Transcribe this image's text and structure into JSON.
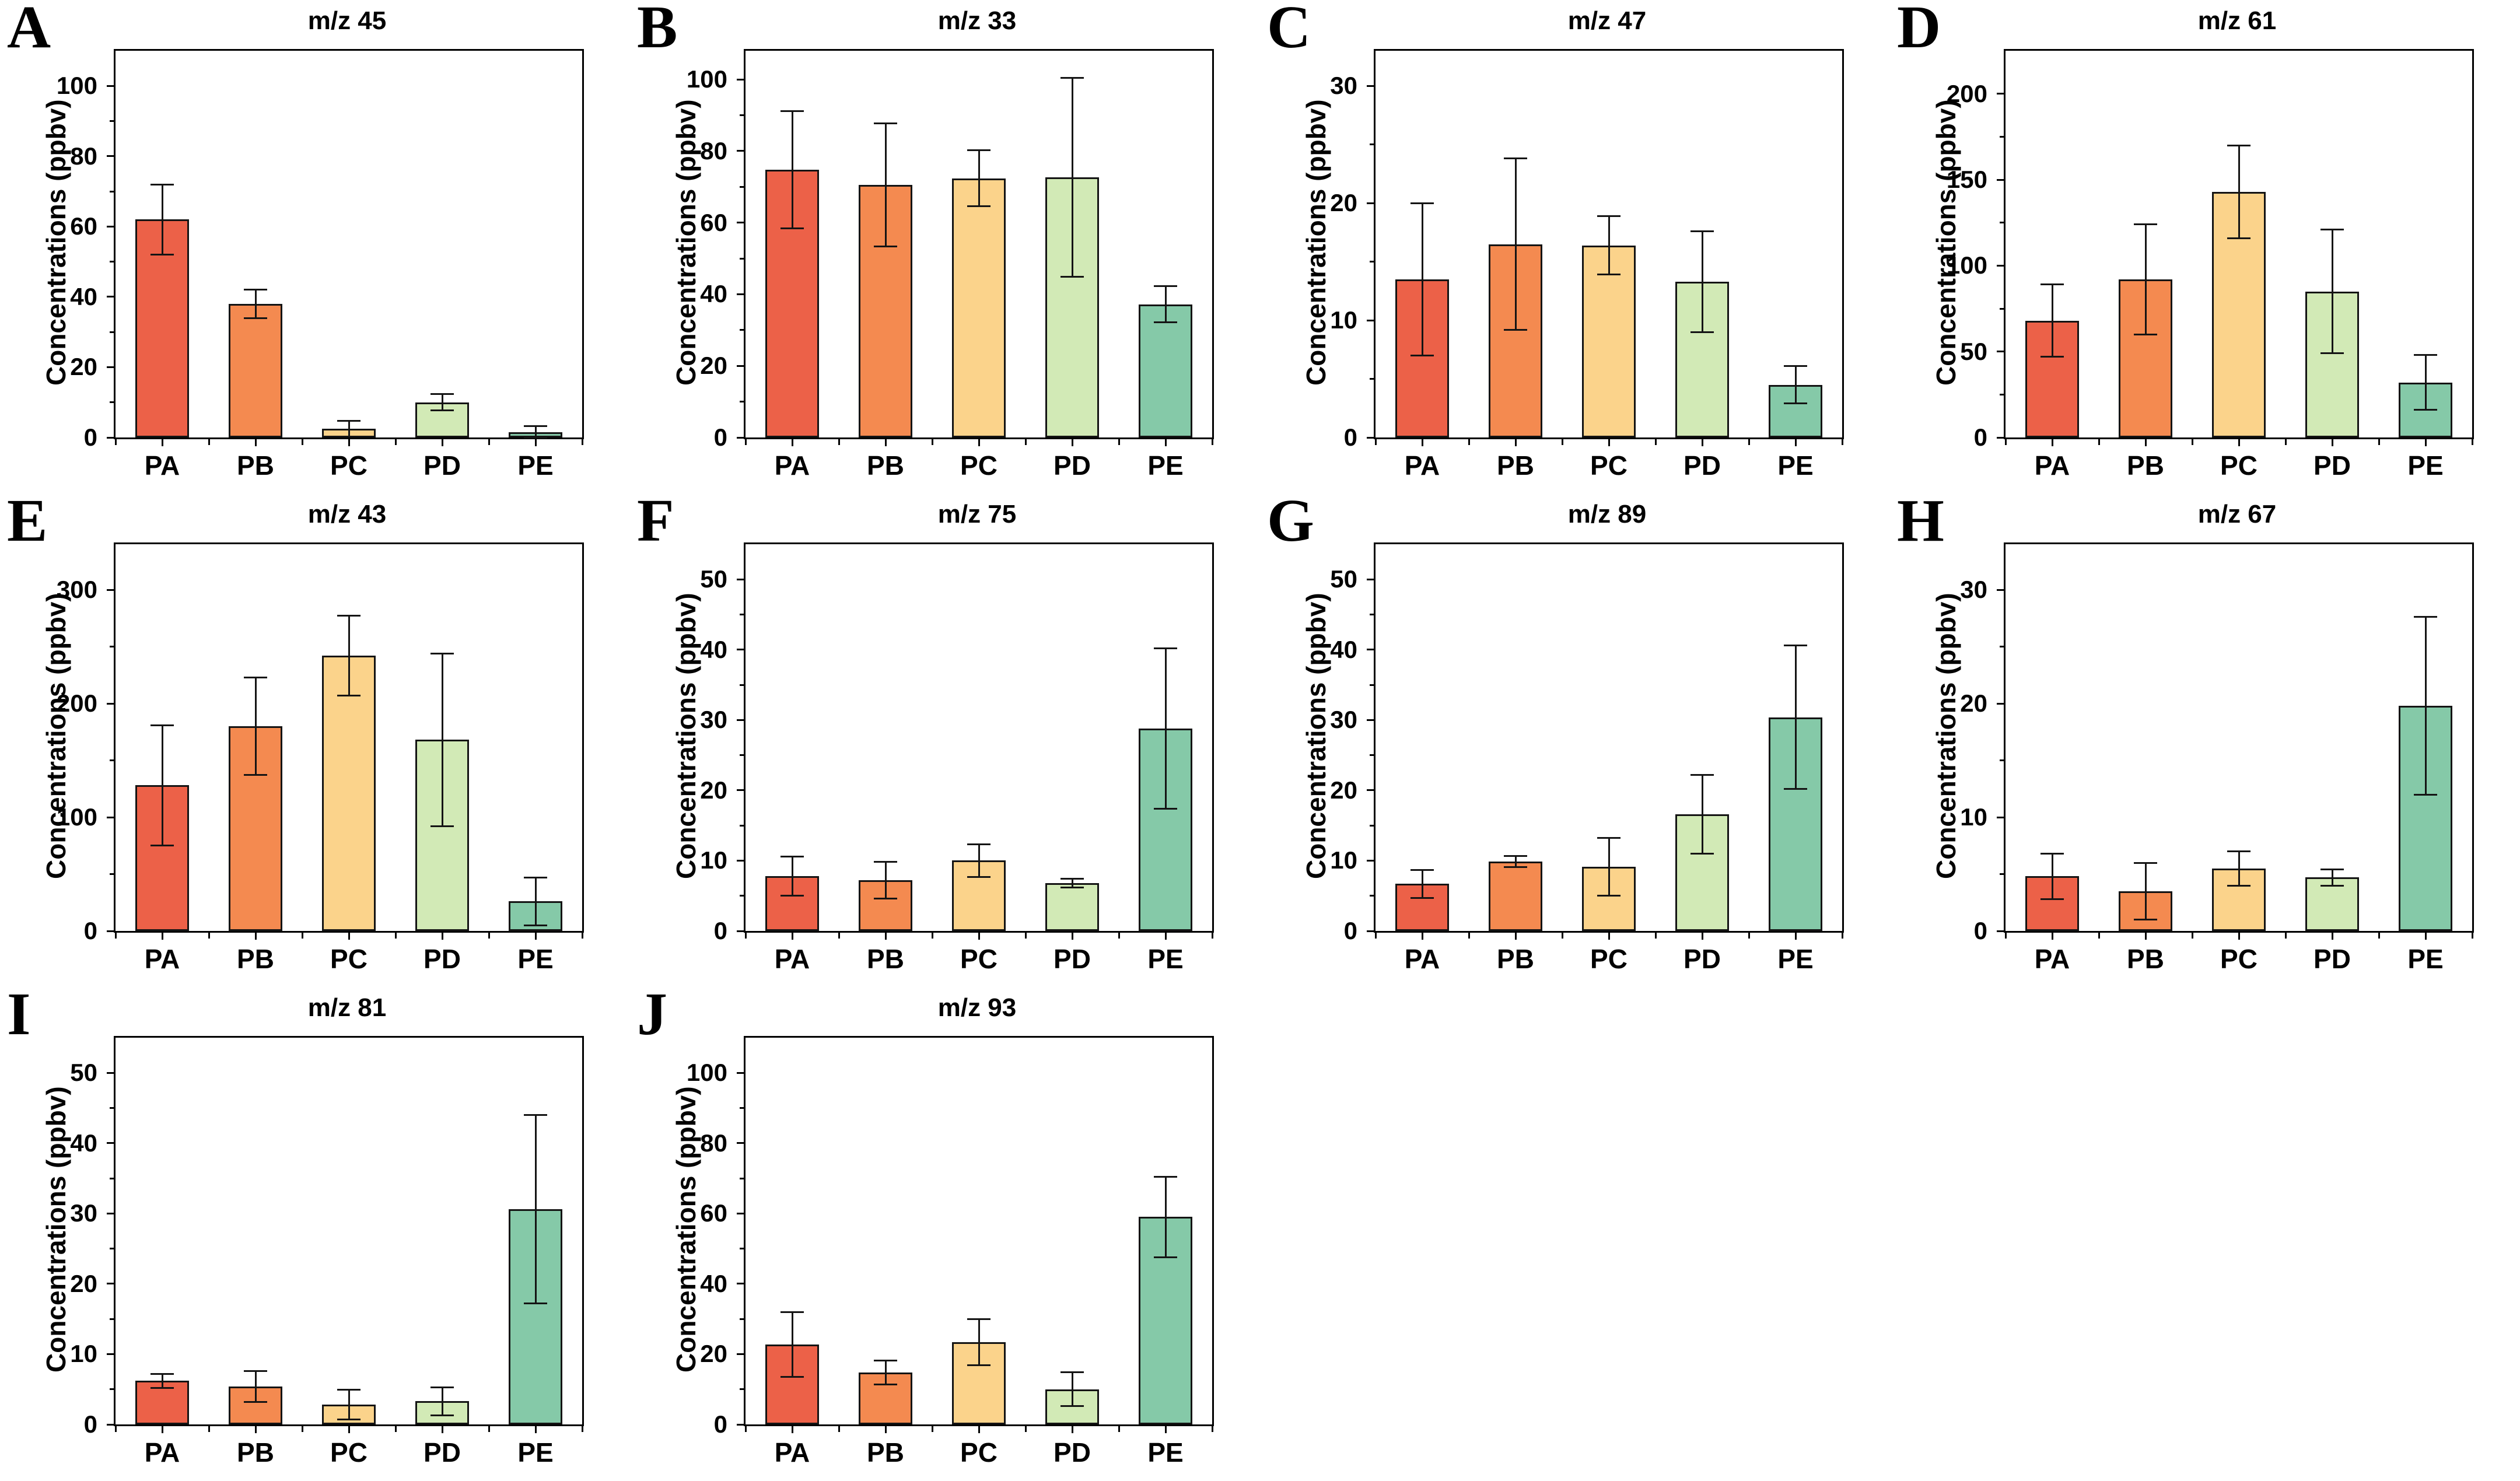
{
  "figure": {
    "background": "#ffffff",
    "ylabel": "Concentrations (ppbv)",
    "categories": [
      "PA",
      "PB",
      "PC",
      "PD",
      "PE"
    ],
    "bar_fill_colors": [
      "#ec6148",
      "#f48a50",
      "#fbd38b",
      "#d2eab6",
      "#85c9a8"
    ],
    "bar_edge_color": "#141414",
    "axis_color": "#000000"
  },
  "chart_data": [
    {
      "panel": "A",
      "type": "bar",
      "title": "m/z 45",
      "ylabel": "Concentrations (ppbv)",
      "categories": [
        "PA",
        "PB",
        "PC",
        "PD",
        "PE"
      ],
      "values": [
        62,
        38,
        2.5,
        10,
        1.5
      ],
      "errors": [
        10,
        4,
        2.2,
        2.3,
        1.7
      ],
      "ylim": [
        0,
        110
      ],
      "yticks": [
        0,
        20,
        40,
        60,
        80,
        100
      ]
    },
    {
      "panel": "B",
      "type": "bar",
      "title": "m/z 33",
      "ylabel": "Concentrations (ppbv)",
      "categories": [
        "PA",
        "PB",
        "PC",
        "PD",
        "PE"
      ],
      "values": [
        74.8,
        70.6,
        72.4,
        72.6,
        37.2
      ],
      "errors": [
        16.4,
        17.2,
        7.8,
        27.8,
        5.1
      ],
      "ylim": [
        0,
        108
      ],
      "yticks": [
        0,
        20,
        40,
        60,
        80,
        100
      ]
    },
    {
      "panel": "C",
      "type": "bar",
      "title": "m/z 47",
      "ylabel": "Concentrations (ppbv)",
      "categories": [
        "PA",
        "PB",
        "PC",
        "PD",
        "PE"
      ],
      "values": [
        13.5,
        16.5,
        16.4,
        13.3,
        4.5
      ],
      "errors": [
        6.5,
        7.3,
        2.5,
        4.3,
        1.6
      ],
      "ylim": [
        0,
        33
      ],
      "yticks": [
        0,
        10,
        20,
        30
      ]
    },
    {
      "panel": "D",
      "type": "bar",
      "title": "m/z 61",
      "ylabel": "Concentrations (ppbv)",
      "categories": [
        "PA",
        "PB",
        "PC",
        "PD",
        "PE"
      ],
      "values": [
        68,
        92,
        143,
        85,
        32
      ],
      "errors": [
        21,
        32,
        27,
        36,
        16
      ],
      "ylim": [
        0,
        225
      ],
      "yticks": [
        0,
        50,
        100,
        150,
        200
      ]
    },
    {
      "panel": "E",
      "type": "bar",
      "title": "m/z 43",
      "ylabel": "Concentrations (ppbv)",
      "categories": [
        "PA",
        "PB",
        "PC",
        "PD",
        "PE"
      ],
      "values": [
        128,
        180,
        242,
        168,
        26
      ],
      "errors": [
        53,
        43,
        35,
        76,
        21
      ],
      "ylim": [
        0,
        340
      ],
      "yticks": [
        0,
        100,
        200,
        300
      ]
    },
    {
      "panel": "F",
      "type": "bar",
      "title": "m/z 75",
      "ylabel": "Concentrations (ppbv)",
      "categories": [
        "PA",
        "PB",
        "PC",
        "PD",
        "PE"
      ],
      "values": [
        7.8,
        7.2,
        10,
        6.8,
        28.8
      ],
      "errors": [
        2.8,
        2.6,
        2.3,
        0.6,
        11.4
      ],
      "ylim": [
        0,
        55
      ],
      "yticks": [
        0,
        10,
        20,
        30,
        40,
        50
      ]
    },
    {
      "panel": "G",
      "type": "bar",
      "title": "m/z 89",
      "ylabel": "Concentrations (ppbv)",
      "categories": [
        "PA",
        "PB",
        "PC",
        "PD",
        "PE"
      ],
      "values": [
        6.7,
        9.9,
        9.1,
        16.6,
        30.4
      ],
      "errors": [
        2,
        0.8,
        4.1,
        5.6,
        10.2
      ],
      "ylim": [
        0,
        55
      ],
      "yticks": [
        0,
        10,
        20,
        30,
        40,
        50
      ]
    },
    {
      "panel": "H",
      "type": "bar",
      "title": "m/z 67",
      "ylabel": "Concentrations (ppbv)",
      "categories": [
        "PA",
        "PB",
        "PC",
        "PD",
        "PE"
      ],
      "values": [
        4.8,
        3.5,
        5.5,
        4.7,
        19.8
      ],
      "errors": [
        2,
        2.5,
        1.5,
        0.7,
        7.8
      ],
      "ylim": [
        0,
        34
      ],
      "yticks": [
        0,
        10,
        20,
        30
      ]
    },
    {
      "panel": "I",
      "type": "bar",
      "title": "m/z 81",
      "ylabel": "Concentrations (ppbv)",
      "categories": [
        "PA",
        "PB",
        "PC",
        "PD",
        "PE"
      ],
      "values": [
        6.2,
        5.4,
        2.8,
        3.3,
        30.6
      ],
      "errors": [
        1,
        2.2,
        2.1,
        2,
        13.4
      ],
      "ylim": [
        0,
        55
      ],
      "yticks": [
        0,
        10,
        20,
        30,
        40,
        50
      ]
    },
    {
      "panel": "J",
      "type": "bar",
      "title": "m/z 93",
      "ylabel": "Concentrations (ppbv)",
      "categories": [
        "PA",
        "PB",
        "PC",
        "PD",
        "PE"
      ],
      "values": [
        22.8,
        14.7,
        23.4,
        10,
        59
      ],
      "errors": [
        9.2,
        3.4,
        6.5,
        4.8,
        11.5
      ],
      "ylim": [
        0,
        110
      ],
      "yticks": [
        0,
        20,
        40,
        60,
        80,
        100
      ]
    }
  ]
}
